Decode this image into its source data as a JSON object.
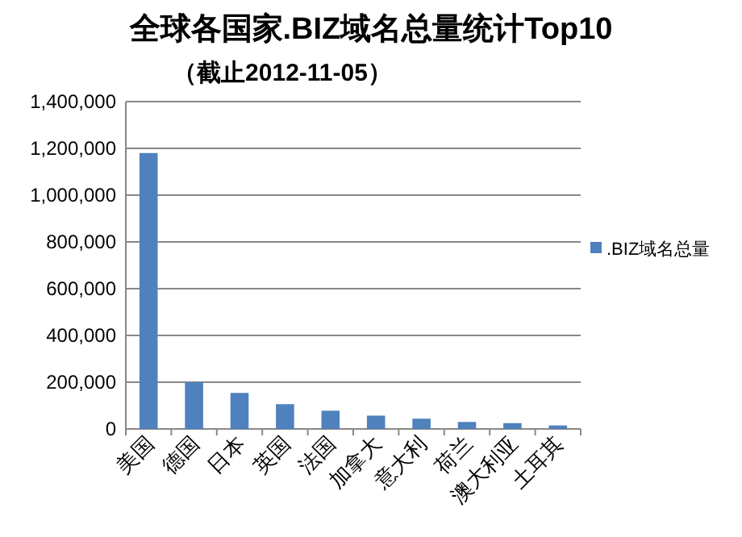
{
  "chart_data": {
    "type": "bar",
    "title": "全球各国家.BIZ域名总量统计Top10",
    "subtitle": "（截止2012-11-05）",
    "categories": [
      "美国",
      "德国",
      "日本",
      "英国",
      "法国",
      "加拿大",
      "意大利",
      "荷兰",
      "澳大利亚",
      "土耳其"
    ],
    "series": [
      {
        "name": ".BIZ域名总量",
        "color": "#4f81bd",
        "values": [
          1180000,
          200000,
          154000,
          106000,
          78000,
          57000,
          44000,
          30000,
          25000,
          15000
        ]
      }
    ],
    "ylim": [
      0,
      1400000
    ],
    "yticks": [
      {
        "value": 0,
        "label": "0"
      },
      {
        "value": 200000,
        "label": "200,000"
      },
      {
        "value": 400000,
        "label": "400,000"
      },
      {
        "value": 600000,
        "label": "600,000"
      },
      {
        "value": 800000,
        "label": "800,000"
      },
      {
        "value": 1000000,
        "label": "1,000,000"
      },
      {
        "value": 1200000,
        "label": "1,200,000"
      },
      {
        "value": 1400000,
        "label": "1,400,000"
      }
    ],
    "grid": "y",
    "legend": "right"
  }
}
